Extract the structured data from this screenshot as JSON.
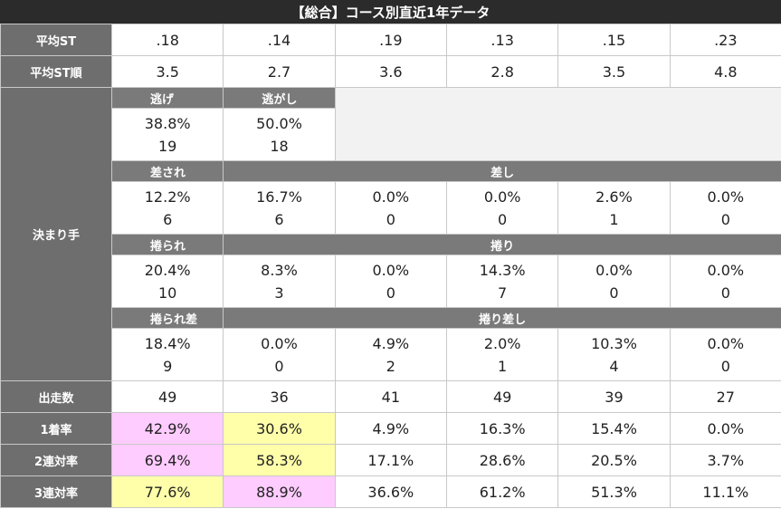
{
  "title": "【総合】コース別直近1年データ",
  "colors": {
    "header_bg": "#6e6e6e",
    "pink": "#ffccff",
    "yellow": "#ffffaa",
    "empty": "#f2f2f2"
  },
  "avg_st": {
    "label": "平均ST",
    "values": [
      ".18",
      ".14",
      ".19",
      ".13",
      ".15",
      ".23"
    ]
  },
  "avg_st_rank": {
    "label": "平均ST順",
    "values": [
      "3.5",
      "2.7",
      "3.6",
      "2.8",
      "3.5",
      "4.8"
    ]
  },
  "kimarite": {
    "label": "決まり手",
    "nige": {
      "labels": [
        "逃げ",
        "逃がし"
      ],
      "pcts": [
        "38.8%",
        "50.0%"
      ],
      "counts": [
        "19",
        "18"
      ]
    },
    "sashi": {
      "label_first": "差され",
      "label_rest": "差し",
      "pcts": [
        "12.2%",
        "16.7%",
        "0.0%",
        "0.0%",
        "2.6%",
        "0.0%"
      ],
      "counts": [
        "6",
        "6",
        "0",
        "0",
        "1",
        "0"
      ]
    },
    "makuri": {
      "label_first": "捲られ",
      "label_rest": "捲り",
      "pcts": [
        "20.4%",
        "8.3%",
        "0.0%",
        "14.3%",
        "0.0%",
        "0.0%"
      ],
      "counts": [
        "10",
        "3",
        "0",
        "7",
        "0",
        "0"
      ]
    },
    "makurizashi": {
      "label_first": "捲られ差",
      "label_rest": "捲り差し",
      "pcts": [
        "18.4%",
        "0.0%",
        "4.9%",
        "2.0%",
        "10.3%",
        "0.0%"
      ],
      "counts": [
        "9",
        "0",
        "2",
        "1",
        "4",
        "0"
      ]
    }
  },
  "starts": {
    "label": "出走数",
    "values": [
      "49",
      "36",
      "41",
      "49",
      "39",
      "27"
    ]
  },
  "win_rate": {
    "label": "1着率",
    "values": [
      "42.9%",
      "30.6%",
      "4.9%",
      "16.3%",
      "15.4%",
      "0.0%"
    ]
  },
  "quinella_rate": {
    "label": "2連対率",
    "values": [
      "69.4%",
      "58.3%",
      "17.1%",
      "28.6%",
      "20.5%",
      "3.7%"
    ]
  },
  "trio_rate": {
    "label": "3連対率",
    "values": [
      "77.6%",
      "88.9%",
      "36.6%",
      "61.2%",
      "51.3%",
      "11.1%"
    ]
  }
}
